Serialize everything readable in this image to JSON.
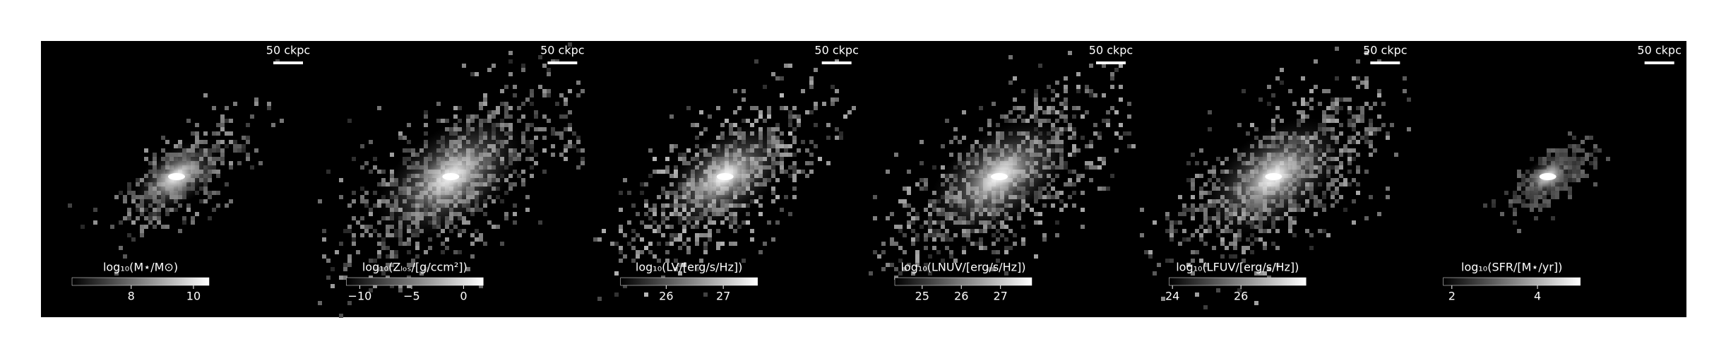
{
  "chart_data": [
    {
      "type": "image",
      "scale_bar": "50 ckpc",
      "colorbar_label": "log₁₀(M⋆/M⊙)",
      "xlim": [
        6.1,
        10.5
      ],
      "xticks": [
        8,
        10
      ]
    },
    {
      "type": "image",
      "scale_bar": "50 ckpc",
      "colorbar_label": "log₁₀(Zₗₒₛ/[g/ccm²])",
      "xlim": [
        -11.3,
        1.9
      ],
      "xticks": [
        {
          "value": -10,
          "label": "−10"
        },
        {
          "value": -5,
          "label": "−5"
        },
        0
      ]
    },
    {
      "type": "image",
      "scale_bar": "50 ckpc",
      "colorbar_label": "log₁₀(LV/[erg/s/Hz])",
      "xlim": [
        25.2,
        27.6
      ],
      "xticks": [
        26,
        27
      ]
    },
    {
      "type": "image",
      "scale_bar": "50 ckpc",
      "colorbar_label": "log₁₀(LNUV/[erg/s/Hz])",
      "xlim": [
        24.3,
        27.8
      ],
      "xticks": [
        25,
        26,
        27
      ]
    },
    {
      "type": "image",
      "scale_bar": "50 ckpc",
      "colorbar_label": "log₁₀(LFUV/[erg/s/Hz])",
      "xlim": [
        23.9,
        27.9
      ],
      "xticks": [
        24,
        26
      ]
    },
    {
      "type": "image",
      "scale_bar": "50 ckpc",
      "colorbar_label": "log₁₀(SFR/[M⋆/yr])",
      "xlim": [
        1.8,
        5.0
      ],
      "xticks": [
        2,
        4
      ]
    }
  ]
}
